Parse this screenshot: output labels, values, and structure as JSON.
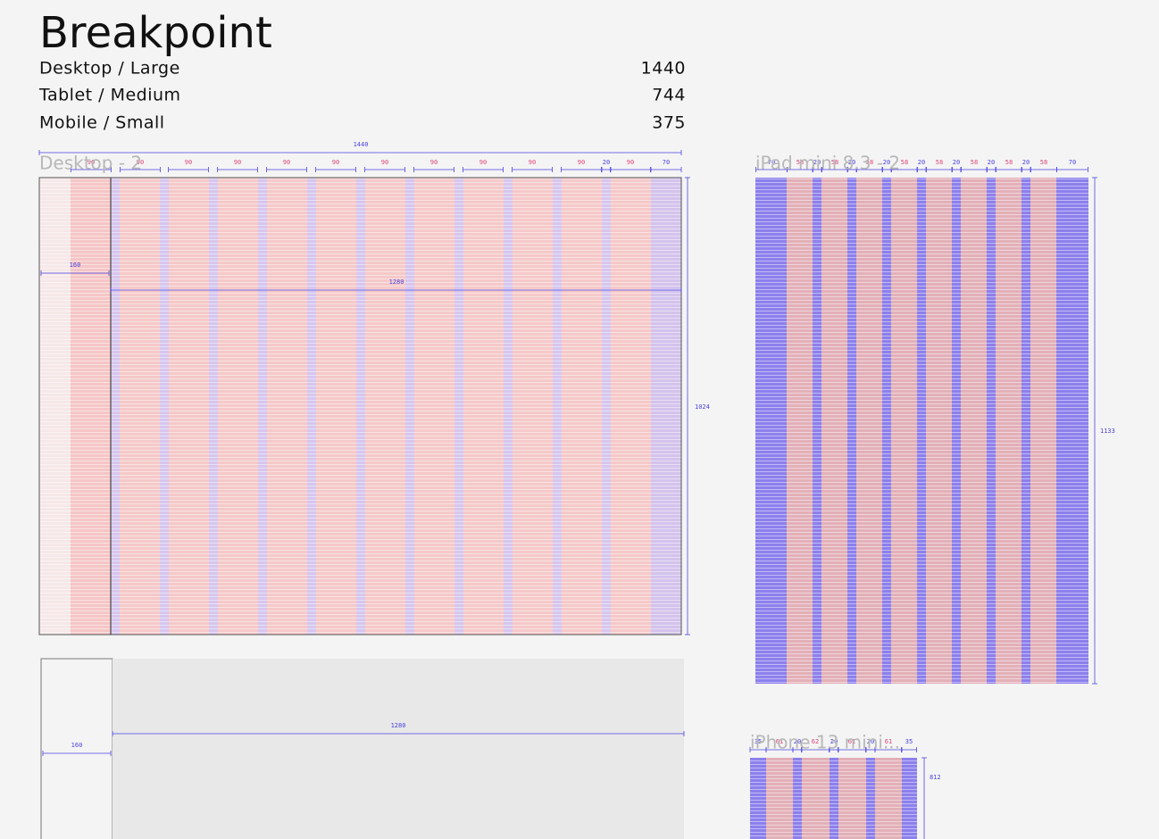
{
  "header": {
    "title": "Breakpoint"
  },
  "breakpoints": [
    {
      "label": "Desktop / Large",
      "value": "1440"
    },
    {
      "label": "Tablet / Medium",
      "value": "744"
    },
    {
      "label": "Mobile / Small",
      "value": "375"
    }
  ],
  "desktop": {
    "name": "Desktop - 2",
    "width": "1440",
    "height": "1024",
    "sidebar": "160",
    "content": "1280",
    "columns": [
      "90",
      "90",
      "90",
      "90",
      "90",
      "90",
      "90",
      "90",
      "90",
      "90",
      "90",
      "20",
      "90",
      "70"
    ]
  },
  "desktop_bottom": {
    "content": "1280",
    "sidebar": "160"
  },
  "tablet": {
    "name": "iPad mini 8.3 - 2",
    "height": "1133",
    "columns": [
      "70",
      "58",
      "20",
      "58",
      "20",
      "58",
      "20",
      "58",
      "20",
      "58",
      "20",
      "58",
      "20",
      "58",
      "20",
      "58",
      "70"
    ]
  },
  "mobile": {
    "name": "iPhone 13 mini...",
    "height": "812",
    "columns": [
      "35",
      "61",
      "20",
      "62",
      "20",
      "61",
      "20",
      "61",
      "35"
    ]
  }
}
